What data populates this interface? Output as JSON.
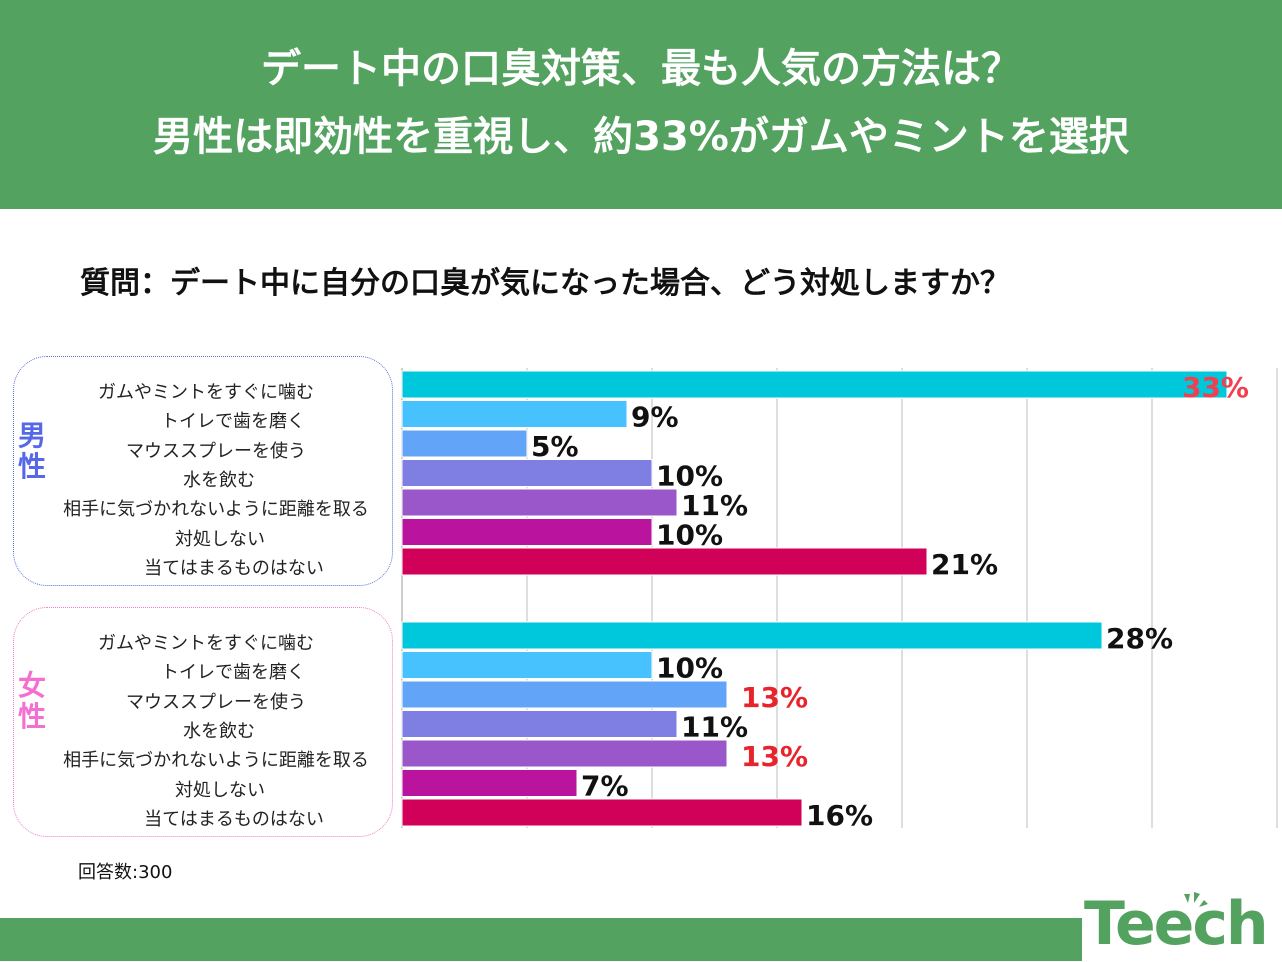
{
  "header": {
    "line1": "デート中の口臭対策、最も人気の方法は？",
    "line2": "男性は即効性を重視し、約33%がガムやミントを選択",
    "background": "#53a260"
  },
  "question": "質問：デート中に自分の口臭が気になった場合、どう対処しますか？",
  "note": "回答数:300",
  "logo": {
    "text": "Teech",
    "color": "#53a260"
  },
  "chart_data": {
    "type": "bar",
    "orientation": "horizontal",
    "title": "質問：デート中に自分の口臭が気になった場合、どう対処しますか？",
    "xlabel": "",
    "ylabel": "",
    "xlim": [
      0,
      35
    ],
    "grid": true,
    "unit": "%",
    "categories": [
      "ガムやミントをすぐに噛む",
      "トイレで歯を磨く",
      "マウススプレーを使う",
      "水を飲む",
      "相手に気づかれないように距離を取る",
      "対処しない",
      "当てはまるものはない"
    ],
    "category_colors": [
      "#00c8dc",
      "#48c2ff",
      "#62a4f7",
      "#7f7fe3",
      "#9a57c9",
      "#ba139d",
      "#d10058"
    ],
    "series": [
      {
        "name": "男性",
        "color": "#5468e8",
        "values": [
          33,
          9,
          5,
          10,
          11,
          10,
          21
        ],
        "labels": [
          "33%",
          "9%",
          "5%",
          "10%",
          "11%",
          "10%",
          "21%"
        ],
        "highlight": [
          true,
          false,
          false,
          false,
          false,
          false,
          false
        ]
      },
      {
        "name": "女性",
        "color": "#f56fd0",
        "values": [
          28,
          10,
          13,
          11,
          13,
          7,
          16
        ],
        "labels": [
          "28%",
          "10%",
          "13%",
          "11%",
          "13%",
          "7%",
          "16%"
        ],
        "highlight": [
          false,
          false,
          true,
          false,
          true,
          false,
          false
        ]
      }
    ],
    "highlight_color": "#e8232b",
    "highlight_color_inside": "#f04050",
    "label_color": "#111111"
  }
}
